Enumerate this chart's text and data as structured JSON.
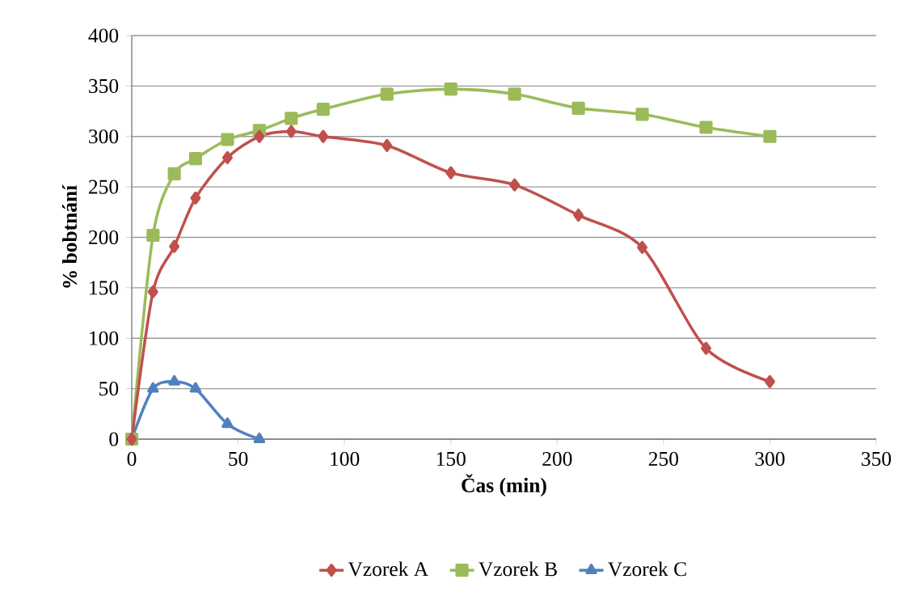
{
  "chart_data": {
    "type": "line",
    "xlabel": "Čas (min)",
    "ylabel": "%  bobtnání",
    "xlim": [
      0,
      350
    ],
    "ylim": [
      0,
      400
    ],
    "xticks": [
      0,
      50,
      100,
      150,
      200,
      250,
      300,
      350
    ],
    "yticks": [
      0,
      50,
      100,
      150,
      200,
      250,
      300,
      350,
      400
    ],
    "grid": "y",
    "legend": "bottom",
    "line_style": "solid",
    "series": [
      {
        "name": "Vzorek A",
        "color": "#c0504d",
        "marker": "diamond",
        "x": [
          0,
          10,
          20,
          30,
          45,
          60,
          75,
          90,
          120,
          150,
          180,
          210,
          240,
          270,
          300
        ],
        "values": [
          0,
          146,
          191,
          239,
          279,
          300,
          305,
          300,
          291,
          264,
          252,
          222,
          190,
          90,
          57
        ]
      },
      {
        "name": "Vzorek B",
        "color": "#9bbb59",
        "marker": "square",
        "x": [
          0,
          10,
          20,
          30,
          45,
          60,
          75,
          90,
          120,
          150,
          180,
          210,
          240,
          270,
          300
        ],
        "values": [
          0,
          202,
          263,
          278,
          297,
          306,
          318,
          327,
          342,
          347,
          342,
          328,
          322,
          309,
          300
        ]
      },
      {
        "name": "Vzorek C",
        "color": "#4f81bd",
        "marker": "triangle",
        "x": [
          0,
          10,
          20,
          30,
          45,
          60
        ],
        "values": [
          0,
          50,
          57,
          50,
          15,
          0
        ]
      }
    ]
  }
}
